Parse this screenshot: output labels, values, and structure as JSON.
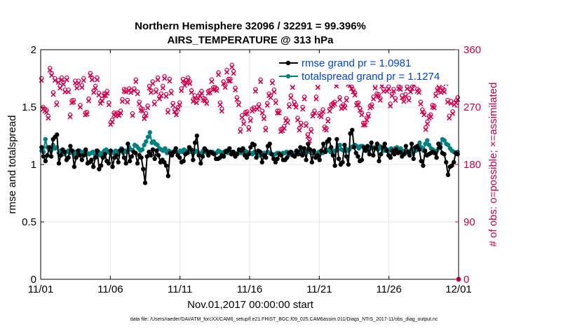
{
  "chart_data": {
    "type": "line",
    "title": "Northern Hemisphere 32096 / 32291 = 99.396%",
    "subtitle": "AIRS_TEMPERATURE @ 313 hPa",
    "xlabel": "Nov.01,2017 00:00:00 start",
    "ylabel": "rmse and totalspread",
    "ylabel_right": "# of obs: o=possible; ×=assimilated",
    "footnote": "data file: /Users/raeder/DAI/ATM_forcXX/CAM6_setup/f.e21.FHIST_BGC.f09_025.CAM6assim.011/Diags_NTrS_2017-11/obs_diag_output.nc",
    "xlim": [
      0,
      30
    ],
    "ylim": [
      0,
      2
    ],
    "ylim_right": [
      0,
      360
    ],
    "x_ticks": [
      0,
      5,
      10,
      15,
      20,
      25,
      30
    ],
    "x_tick_labels": [
      "11/01",
      "11/06",
      "11/11",
      "11/16",
      "11/21",
      "11/26",
      "12/01"
    ],
    "y_ticks": [
      0,
      0.5,
      1,
      1.5,
      2
    ],
    "y_tick_labels": [
      "0",
      "0.5",
      "1",
      "1.5",
      "2"
    ],
    "y_right_ticks": [
      0,
      90,
      180,
      270,
      360
    ],
    "y_right_tick_labels": [
      "0",
      "90",
      "180",
      "270",
      "360"
    ],
    "grid": true,
    "legend_position": "top-right",
    "colors": {
      "rmse": "#000000",
      "spread": "#008080",
      "obs": "#d4004f",
      "right_axis": "#c8004a",
      "legend_text": "#0044dd"
    },
    "series": [
      {
        "name": "rmse grand pr = 1.0981",
        "key": "rmse",
        "values": [
          1.15,
          1.07,
          1.03,
          1.08,
          1.15,
          1.07,
          1.22,
          1.24,
          1.26,
          1.01,
          1.08,
          1.13,
          1.11,
          1.04,
          1.06,
          1.16,
          1.12,
          0.98,
          1.06,
          1.12,
          1.08,
          1.04,
          1.08,
          1.13,
          1.01,
          1.02,
          1.04,
          0.98,
          1.06,
          1.12,
          0.96,
          0.99,
          1.06,
          1.09,
          1.03,
          1.01,
          1.12,
          0.98,
          1.06,
          1.08,
          1.02,
          1.12,
          1.13,
          1.06,
          1.01,
          1.18,
          1.03,
          1.07,
          1.11,
          1.1,
          1.01,
          1.08,
          1.06,
          0.96,
          0.84,
          1.07,
          1.11,
          1.08,
          1.13,
          1.05,
          1.12,
          1.08,
          1.02,
          1.04,
          1.02,
          0.99,
          0.9,
          1.1,
          1.08,
          1.11,
          1.14,
          1.08,
          1.06,
          1.02,
          1.03,
          1.09,
          1.1,
          1.15,
          1.13,
          1.04,
          1.19,
          1.25,
          1.08,
          1.01,
          1.07,
          1.14,
          1.12,
          1.08,
          1.11,
          1.1,
          1.09,
          1.05,
          1.05,
          1.06,
          1.08,
          1.07,
          1.11,
          1.12,
          1.14,
          1.09,
          1.11,
          1.07,
          1.09,
          1.13,
          1.12,
          1.14,
          1.08,
          1.06,
          1.09,
          1.15,
          1.18,
          1.17,
          1.06,
          1.12,
          1.11,
          1.02,
          1.08,
          1.06,
          1.16,
          1.18,
          1.09,
          1.05,
          1.02,
          1.05,
          1.09,
          1.08,
          1.04,
          1.04,
          1.06,
          1.1,
          1.11,
          1.08,
          1.07,
          1.12,
          1.09,
          1.15,
          1.08,
          1.14,
          1.04,
          1.18,
          1.13,
          1.02,
          1.12,
          1.06,
          1.08,
          1.04,
          1.12,
          1.18,
          1.11,
          1.2,
          1.22,
          1.15,
          1.08,
          0.99,
          1.22,
          1.05,
          1.0,
          1.02,
          1.17,
          1.07,
          1.0,
          1.27,
          1.3,
          1.15,
          1.1,
          1.07,
          1.03,
          1.04,
          1.15,
          1.12,
          1.16,
          1.09,
          1.19,
          1.08,
          1.14,
          1.18,
          1.03,
          1.09,
          1.15,
          1.18,
          1.12,
          1.08,
          1.06,
          1.12,
          1.09,
          1.13,
          1.1,
          1.11,
          1.07,
          1.09,
          1.16,
          1.11,
          1.08,
          1.18,
          1.05,
          1.15,
          1.16,
          1.13,
          1.03,
          0.99,
          1.12,
          1.08,
          1.09,
          1.1,
          1.11,
          1.1,
          1.06,
          1.18,
          1.15,
          1.1,
          1.09,
          1.02,
          0.91,
          0.98,
          0.99,
          1.02,
          1.1,
          1.09
        ]
      },
      {
        "name": "totalspread grand pr = 1.1274",
        "key": "spread",
        "values": [
          1.12,
          1.11,
          1.22,
          1.15,
          1.13,
          1.12,
          1.17,
          1.14,
          1.15,
          1.1,
          1.12,
          1.09,
          1.09,
          1.11,
          1.12,
          1.1,
          1.11,
          1.09,
          1.11,
          1.1,
          1.12,
          1.09,
          1.11,
          1.12,
          1.1,
          1.09,
          1.1,
          1.11,
          1.09,
          1.12,
          1.11,
          1.08,
          1.1,
          1.12,
          1.13,
          1.11,
          1.1,
          1.11,
          1.1,
          1.12,
          1.09,
          1.12,
          1.14,
          1.1,
          1.12,
          1.11,
          1.15,
          1.13,
          1.12,
          1.17,
          1.16,
          1.14,
          1.12,
          1.13,
          1.17,
          1.2,
          1.24,
          1.28,
          1.19,
          1.2,
          1.18,
          1.17,
          1.14,
          1.13,
          1.12,
          1.14,
          1.1,
          1.12,
          1.11,
          1.1,
          1.12,
          1.11,
          1.1,
          1.12,
          1.11,
          1.13,
          1.1,
          1.12,
          1.11,
          1.11,
          1.1,
          1.12,
          1.11,
          1.1,
          1.09,
          1.12,
          1.11,
          1.1,
          1.1,
          1.11,
          1.11,
          1.1,
          1.1,
          1.12,
          1.11,
          1.1,
          1.11,
          1.12,
          1.1,
          1.11,
          1.11,
          1.1,
          1.09,
          1.1,
          1.11,
          1.1,
          1.11,
          1.12,
          1.11,
          1.1,
          1.1,
          1.09,
          1.11,
          1.1,
          1.1,
          1.08,
          1.09,
          1.1,
          1.1,
          1.11,
          1.1,
          1.09,
          1.08,
          1.09,
          1.1,
          1.1,
          1.09,
          1.1,
          1.1,
          1.11,
          1.08,
          1.11,
          1.1,
          1.1,
          1.09,
          1.1,
          1.11,
          1.12,
          1.1,
          1.12,
          1.12,
          1.11,
          1.1,
          1.11,
          1.1,
          1.09,
          1.11,
          1.11,
          1.1,
          1.11,
          1.12,
          1.13,
          1.11,
          1.1,
          1.12,
          1.12,
          1.13,
          1.17,
          1.13,
          1.12,
          1.14,
          1.12,
          1.13,
          1.15,
          1.16,
          1.17,
          1.16,
          1.14,
          1.16,
          1.16,
          1.13,
          1.12,
          1.14,
          1.15,
          1.14,
          1.15,
          1.14,
          1.13,
          1.16,
          1.14,
          1.12,
          1.14,
          1.13,
          1.12,
          1.14,
          1.12,
          1.14,
          1.15,
          1.13,
          1.14,
          1.12,
          1.11,
          1.1,
          1.11,
          1.12,
          1.11,
          1.14,
          1.12,
          1.16,
          1.19,
          1.15,
          1.12,
          1.18,
          1.21,
          1.17,
          1.14,
          1.13,
          1.11,
          1.12,
          1.14,
          1.18,
          1.22,
          1.21,
          1.18,
          1.17,
          1.14,
          1.12,
          1.11,
          1.1,
          1.11
        ]
      },
      {
        "name": "obs",
        "key": "obs",
        "values": [
          314,
          269,
          266,
          264,
          255,
          330,
          322,
          292,
          314,
          276,
          311,
          302,
          315,
          308,
          296,
          315,
          296,
          257,
          279,
          280,
          310,
          302,
          310,
          272,
          303,
          314,
          260,
          261,
          282,
          322,
          315,
          295,
          302,
          315,
          291,
          278,
          282,
          290,
          290,
          294,
          276,
          245,
          249,
          260,
          258,
          260,
          259,
          263,
          281,
          297,
          296,
          280,
          298,
          295,
          259,
          298,
          312,
          293,
          277,
          267,
          266,
          254,
          259,
          271,
          302,
          295,
          309,
          277,
          296,
          315,
          285,
          290,
          302,
          317,
          289,
          264,
          313,
          294,
          275,
          265,
          260,
          269,
          276,
          298,
          313,
          306,
          311,
          315,
          309,
          295,
          281,
          287,
          279,
          286,
          290,
          294,
          283,
          282,
          278,
          294,
          295,
          312,
          300,
          300,
          298,
          323,
          276,
          266,
          309,
          303,
          327,
          313,
          313,
          335,
          325,
          299,
          284,
          276,
          234,
          256,
          246,
          261,
          262,
          237,
          251,
          266,
          268,
          297,
          269,
          273,
          312,
          263,
          254,
          236,
          275,
          290,
          287,
          310,
          296,
          279,
          263,
          263,
          234,
          235,
          239,
          251,
          248,
          273,
          287,
          303,
          277,
          272,
          252,
          236,
          244,
          269,
          285,
          243,
          226,
          219,
          234,
          258,
          263,
          285,
          303,
          259,
          257,
          265,
          238,
          236,
          250,
          266,
          273,
          275,
          277,
          305,
          311,
          284,
          270,
          273,
          271,
          283,
          308,
          306,
          301,
          296,
          291,
          275,
          276,
          267,
          260,
          244,
          244,
          252,
          258,
          271,
          273,
          285,
          302,
          290,
          289,
          283,
          305,
          297,
          313,
          297,
          301,
          274,
          290,
          297,
          283,
          311,
          301,
          300,
          287,
          281,
          289,
          301,
          283,
          296,
          301,
          307,
          317,
          297,
          295,
          277,
          265,
          260,
          237,
          246,
          255,
          257,
          272,
          271,
          290,
          298,
          303,
          295,
          298,
          296,
          309,
          280,
          255,
          278,
          262,
          276,
          279,
          284
        ]
      }
    ]
  }
}
